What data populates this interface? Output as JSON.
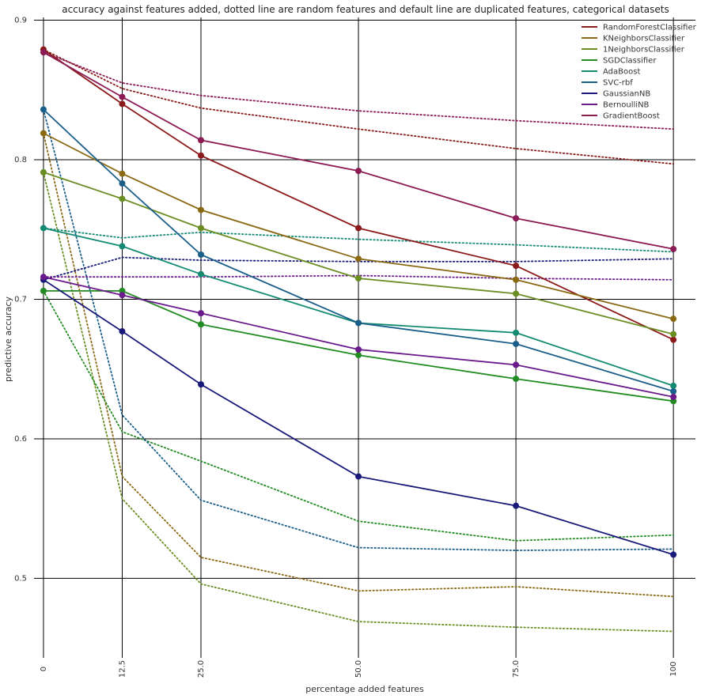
{
  "chart_data": {
    "type": "line",
    "title": "accuracy against features added, dotted line are random features and default line are duplicated features, categorical datasets",
    "xlabel": "percentage added features",
    "ylabel": "predictive accuracy",
    "x": [
      0,
      12.5,
      25,
      50,
      75,
      100
    ],
    "x_tick_labels": [
      "0",
      "12.5",
      "25.0",
      "50.0",
      "75.0",
      "100"
    ],
    "xlim": [
      -1.5,
      103.5
    ],
    "y_ticks": [
      0.5,
      0.6,
      0.7,
      0.8,
      0.9
    ],
    "y_tick_labels": [
      "0.5",
      "0.6",
      "0.7",
      "0.8",
      "0.9"
    ],
    "ylim": [
      0.443,
      0.902
    ],
    "grid": true,
    "legend_position": "top-right",
    "series": [
      {
        "name": "RandomForestClassifier",
        "color": "#8b1a1a",
        "duplicated": [
          0.879,
          0.84,
          0.803,
          0.751,
          0.724,
          0.671
        ],
        "random": [
          0.879,
          0.851,
          0.837,
          0.822,
          0.808,
          0.797
        ]
      },
      {
        "name": "KNeighborsClassifier",
        "color": "#8b6914",
        "duplicated": [
          0.819,
          0.79,
          0.764,
          0.729,
          0.714,
          0.686
        ],
        "random": [
          0.819,
          0.573,
          0.515,
          0.491,
          0.494,
          0.487
        ]
      },
      {
        "name": "1NeighborsClassifier",
        "color": "#6b8e23",
        "duplicated": [
          0.791,
          0.772,
          0.751,
          0.715,
          0.704,
          0.675
        ],
        "random": [
          0.791,
          0.557,
          0.496,
          0.469,
          0.465,
          0.462
        ]
      },
      {
        "name": "SGDClassifier",
        "color": "#228b22",
        "duplicated": [
          0.706,
          0.706,
          0.682,
          0.66,
          0.643,
          0.627
        ],
        "random": [
          0.706,
          0.605,
          0.584,
          0.541,
          0.527,
          0.531
        ]
      },
      {
        "name": "AdaBoost",
        "color": "#138a72",
        "duplicated": [
          0.751,
          0.738,
          0.718,
          0.683,
          0.676,
          0.638
        ],
        "random": [
          0.751,
          0.744,
          0.748,
          0.743,
          0.739,
          0.734
        ]
      },
      {
        "name": "SVC-rbf",
        "color": "#1a5e8a",
        "duplicated": [
          0.836,
          0.783,
          0.732,
          0.683,
          0.668,
          0.634
        ],
        "random": [
          0.836,
          0.617,
          0.556,
          0.522,
          0.52,
          0.521
        ]
      },
      {
        "name": "GaussianNB",
        "color": "#1a1a7a",
        "duplicated": [
          0.714,
          0.677,
          0.639,
          0.573,
          0.552,
          0.517
        ],
        "random": [
          0.714,
          0.73,
          0.728,
          0.727,
          0.727,
          0.729
        ]
      },
      {
        "name": "BernoulliNB",
        "color": "#6a1a8b",
        "duplicated": [
          0.716,
          0.703,
          0.69,
          0.664,
          0.653,
          0.63
        ],
        "random": [
          0.716,
          0.716,
          0.716,
          0.717,
          0.715,
          0.714
        ]
      },
      {
        "name": "GradientBoost",
        "color": "#8b1a55",
        "duplicated": [
          0.877,
          0.845,
          0.814,
          0.792,
          0.758,
          0.736
        ],
        "random": [
          0.877,
          0.855,
          0.846,
          0.835,
          0.828,
          0.822
        ]
      }
    ]
  }
}
